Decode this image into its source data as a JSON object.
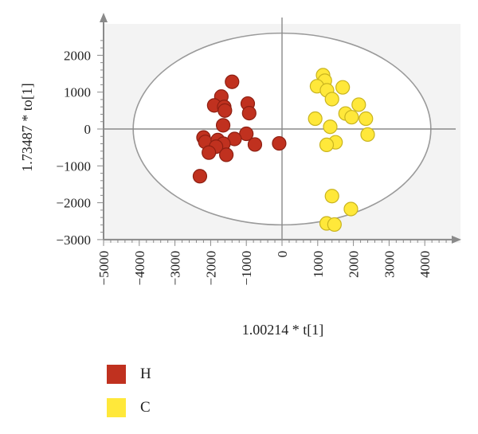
{
  "chart_data": {
    "type": "scatter",
    "xlabel": "1.00214 * t[1]",
    "ylabel": "1.73487 * to[1]",
    "xlim": [
      -5000,
      5000
    ],
    "ylim": [
      -3000,
      2600
    ],
    "xticks": [
      -5000,
      -4000,
      -3000,
      -2000,
      -1000,
      0,
      1000,
      2000,
      3000,
      4000
    ],
    "yticks": [
      -3000,
      -2000,
      -1000,
      0,
      1000,
      2000
    ],
    "xtick_labels": [
      "−5000",
      "−4000",
      "−3000",
      "−2000",
      "−1000",
      "0",
      "1000",
      "2000",
      "3000",
      "4000"
    ],
    "ytick_labels": [
      "−3000",
      "−2000",
      "−1000",
      "0",
      "1000",
      "2000"
    ],
    "ellipse": {
      "cx": 0,
      "cy": 0,
      "rx": 4170,
      "ry": 2600
    },
    "legend_position": "bottom-left",
    "series": [
      {
        "name": "H",
        "color": "#c0311f",
        "points": [
          [
            -1400,
            1280
          ],
          [
            -1700,
            880
          ],
          [
            -1900,
            640
          ],
          [
            -1620,
            600
          ],
          [
            -1600,
            500
          ],
          [
            -960,
            690
          ],
          [
            -920,
            430
          ],
          [
            -1650,
            100
          ],
          [
            -1000,
            -130
          ],
          [
            -2200,
            -230
          ],
          [
            -2150,
            -350
          ],
          [
            -1800,
            -300
          ],
          [
            -1330,
            -270
          ],
          [
            -1640,
            -400
          ],
          [
            -760,
            -420
          ],
          [
            -1850,
            -480
          ],
          [
            -2050,
            -640
          ],
          [
            -1560,
            -700
          ],
          [
            -2300,
            -1280
          ],
          [
            -80,
            -390
          ]
        ]
      },
      {
        "name": "C",
        "color": "#ffe83a",
        "points": [
          [
            1150,
            1460
          ],
          [
            1200,
            1310
          ],
          [
            980,
            1160
          ],
          [
            1700,
            1130
          ],
          [
            1260,
            1050
          ],
          [
            1400,
            810
          ],
          [
            2150,
            660
          ],
          [
            1780,
            420
          ],
          [
            1950,
            320
          ],
          [
            2350,
            280
          ],
          [
            930,
            280
          ],
          [
            1350,
            60
          ],
          [
            2400,
            -150
          ],
          [
            1500,
            -360
          ],
          [
            1250,
            -430
          ],
          [
            1400,
            -1820
          ],
          [
            1930,
            -2170
          ],
          [
            1250,
            -2560
          ],
          [
            1470,
            -2590
          ]
        ]
      }
    ]
  }
}
